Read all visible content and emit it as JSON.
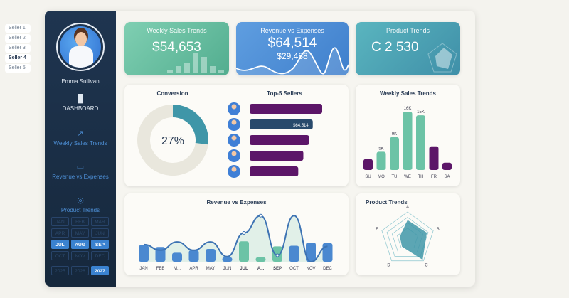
{
  "seller_list": [
    {
      "label": "Seller 1"
    },
    {
      "label": "Seller 2"
    },
    {
      "label": "Seller 3"
    },
    {
      "label": "Seller 4",
      "selected": true
    },
    {
      "label": "Seller 5"
    }
  ],
  "sidebar": {
    "user_name": "Emma Sullivan",
    "nav": [
      {
        "label": "DASHBOARD",
        "icon": "bar-chart-icon"
      },
      {
        "label": "Weekly Sales Trends",
        "icon": "trend-up-icon"
      },
      {
        "label": "Revenue vs Expenses",
        "icon": "cash-icon"
      },
      {
        "label": "Product Trends",
        "icon": "cycle-icon"
      }
    ],
    "months": [
      {
        "label": "JAN"
      },
      {
        "label": "FEB"
      },
      {
        "label": "MAR"
      },
      {
        "label": "APR"
      },
      {
        "label": "MAY"
      },
      {
        "label": "JUN"
      },
      {
        "label": "JUL",
        "selected": true
      },
      {
        "label": "AUG",
        "selected": true
      },
      {
        "label": "SEP",
        "selected": true
      },
      {
        "label": "OCT"
      },
      {
        "label": "NOV"
      },
      {
        "label": "DEC"
      }
    ],
    "years": [
      {
        "label": "2025"
      },
      {
        "label": "2026"
      },
      {
        "label": "2027",
        "selected": true
      }
    ]
  },
  "kpis": {
    "weekly": {
      "title": "Weekly Sales Trends",
      "value": "$54,653"
    },
    "revenue": {
      "title": "Revenue vs Expenses",
      "value": "$64,514",
      "sub": "$29,488"
    },
    "product": {
      "title": "Product Trends",
      "value": "C  2 530"
    }
  },
  "colors": {
    "purple": "#5c1668",
    "teal": "#3f96a8",
    "green": "#6cc3a6",
    "blue": "#3f82cc",
    "navy": "#1c324b"
  },
  "chart_data": [
    {
      "type": "pie",
      "title": "Conversion",
      "center_label": "27%",
      "values": [
        27,
        73
      ]
    },
    {
      "type": "bar",
      "title": "Top-5 Sellers",
      "values": [
        100,
        87,
        82,
        74,
        67
      ],
      "highlight_index": 1,
      "highlight_label": "$64,514"
    },
    {
      "type": "bar",
      "title": "Weekly Sales Trends",
      "categories": [
        "SU",
        "MO",
        "TU",
        "WE",
        "TH",
        "FR",
        "SA"
      ],
      "values": [
        3,
        5,
        9,
        16,
        15,
        6.5,
        2
      ],
      "data_labels": [
        "",
        "5K",
        "9K",
        "16K",
        "15K",
        "",
        ""
      ]
    },
    {
      "type": "bar",
      "title": "Revenue vs Expenses",
      "categories": [
        "JAN",
        "FEB",
        "M...",
        "APR",
        "MAY",
        "JUN",
        "JUL",
        "A...",
        "SEP",
        "OCT",
        "NOV",
        "DEC"
      ],
      "bold_categories": [
        "JUL",
        "A...",
        "SEP"
      ],
      "bars": [
        26,
        23,
        14,
        18,
        20,
        7,
        32,
        7,
        24,
        25,
        30,
        29
      ],
      "line": [
        27,
        18,
        31,
        18,
        31,
        8,
        45,
        72,
        10,
        72,
        0,
        24
      ]
    },
    {
      "type": "radar",
      "title": "Product Trends",
      "categories": [
        "A",
        "B",
        "C",
        "D",
        "E"
      ],
      "values": [
        0.7,
        0.75,
        0.95,
        0.35,
        0.3
      ]
    }
  ]
}
